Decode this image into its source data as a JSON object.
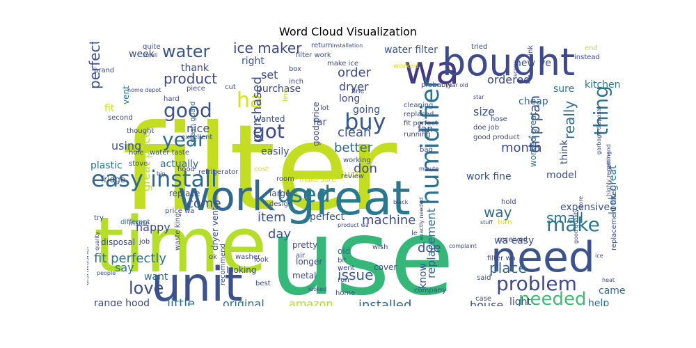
{
  "title": "Word Cloud Visualization",
  "palette": "viridis",
  "words": [
    {
      "text": "filter",
      "color": "#c3de22"
    },
    {
      "text": "use",
      "color": "#35b779"
    },
    {
      "text": "time",
      "color": "#b5de2b"
    },
    {
      "text": "work",
      "color": "#31688e"
    },
    {
      "text": "great",
      "color": "#2a788e"
    },
    {
      "text": "wa",
      "color": "#443983"
    },
    {
      "text": "bought",
      "color": "#3e4a89"
    },
    {
      "text": "unit",
      "color": "#3b528b"
    },
    {
      "text": "need",
      "color": "#3b528b"
    },
    {
      "text": "humidifier",
      "color": "#2c728e"
    },
    {
      "text": "easy install",
      "color": "#31688e"
    },
    {
      "text": "ha",
      "color": "#d8e219"
    },
    {
      "text": "buy",
      "color": "#38588c"
    },
    {
      "text": "got",
      "color": "#3e4a89"
    },
    {
      "text": "used",
      "color": "#2a788e"
    },
    {
      "text": "good",
      "color": "#3b528b"
    },
    {
      "text": "year",
      "color": "#31688e"
    },
    {
      "text": "love",
      "color": "#3e4a89"
    },
    {
      "text": "problem",
      "color": "#3e4a89"
    },
    {
      "text": "make",
      "color": "#2a788e"
    },
    {
      "text": "needed",
      "color": "#3dbc74"
    },
    {
      "text": "thing",
      "color": "#2c728e"
    },
    {
      "text": "water",
      "color": "#3b528b"
    },
    {
      "text": "ice maker",
      "color": "#3e4a89"
    },
    {
      "text": "perfect fit",
      "color": "#3b528b"
    },
    {
      "text": "fit perfectly",
      "color": "#2c728e"
    },
    {
      "text": "great price",
      "color": "#b5de2b"
    },
    {
      "text": "purchased",
      "color": "#3b528b"
    },
    {
      "text": "really",
      "color": "#2c728e"
    },
    {
      "text": "drip pan",
      "color": "#3b528b"
    },
    {
      "text": "replacement",
      "color": "#31688e"
    },
    {
      "text": "product",
      "color": "#3e4a89"
    },
    {
      "text": "range hood",
      "color": "#3e4a89"
    },
    {
      "text": "little",
      "color": "#2c728e"
    },
    {
      "text": "original",
      "color": "#2c728e"
    },
    {
      "text": "amazon",
      "color": "#b5de2b"
    },
    {
      "text": "installed",
      "color": "#31688e"
    },
    {
      "text": "issue",
      "color": "#38588c"
    },
    {
      "text": "item",
      "color": "#3b528b"
    },
    {
      "text": "machine",
      "color": "#3e4a89"
    },
    {
      "text": "day",
      "color": "#3b528b"
    },
    {
      "text": "doe",
      "color": "#3b528b"
    },
    {
      "text": "place",
      "color": "#31688e"
    },
    {
      "text": "small",
      "color": "#2c728e"
    },
    {
      "text": "way",
      "color": "#31688e"
    },
    {
      "text": "work fine",
      "color": "#3b528b"
    },
    {
      "text": "month",
      "color": "#3e4a89"
    },
    {
      "text": "order",
      "color": "#3e4a89"
    },
    {
      "text": "dryer",
      "color": "#3e4a89"
    },
    {
      "text": "clean",
      "color": "#3b528b"
    },
    {
      "text": "better",
      "color": "#31688e"
    },
    {
      "text": "set",
      "color": "#3e4a89"
    },
    {
      "text": "nice",
      "color": "#3e4a89"
    },
    {
      "text": "come",
      "color": "#3b528b"
    },
    {
      "text": "using",
      "color": "#3b528b"
    },
    {
      "text": "happy",
      "color": "#3e4a89"
    },
    {
      "text": "say",
      "color": "#2c728e"
    },
    {
      "text": "want",
      "color": "#31688e"
    },
    {
      "text": "water filter",
      "color": "#3b528b"
    },
    {
      "text": "ordered",
      "color": "#3e4a89"
    },
    {
      "text": "sure",
      "color": "#2a788e"
    },
    {
      "text": "look great",
      "color": "#2c728e"
    },
    {
      "text": "house",
      "color": "#3e4a89"
    },
    {
      "text": "light",
      "color": "#3b528b"
    },
    {
      "text": "help",
      "color": "#31688e"
    },
    {
      "text": "came",
      "color": "#31688e"
    },
    {
      "text": "expensive",
      "color": "#3b528b"
    },
    {
      "text": "kitchen",
      "color": "#2a788e"
    },
    {
      "text": "purchase",
      "color": "#3e4a89"
    },
    {
      "text": "don",
      "color": "#3e4a89"
    },
    {
      "text": "great product",
      "color": "#c3de22"
    },
    {
      "text": "perfect",
      "color": "#3b528b"
    },
    {
      "text": "new",
      "color": "#3b528b"
    },
    {
      "text": "ve",
      "color": "#3e4a89"
    },
    {
      "text": "right",
      "color": "#3b528b"
    },
    {
      "text": "long",
      "color": "#3e4a89"
    },
    {
      "text": "going",
      "color": "#3b528b"
    },
    {
      "text": "far",
      "color": "#3b528b"
    },
    {
      "text": "fan",
      "color": "#3b528b"
    },
    {
      "text": "size",
      "color": "#3b528b"
    },
    {
      "text": "cheap",
      "color": "#31688e"
    },
    {
      "text": "think",
      "color": "#3b528b"
    },
    {
      "text": "model",
      "color": "#3e4a89"
    },
    {
      "text": "thank",
      "color": "#3e4a89"
    },
    {
      "text": "week",
      "color": "#3b528b"
    },
    {
      "text": "vent",
      "color": "#2a788e"
    },
    {
      "text": "fit",
      "color": "#c3de22"
    },
    {
      "text": "wanted",
      "color": "#3b528b"
    },
    {
      "text": "easily",
      "color": "#3b528b"
    },
    {
      "text": "actually",
      "color": "#31688e"
    },
    {
      "text": "plastic",
      "color": "#2a788e"
    },
    {
      "text": "fridge",
      "color": "#3b528b"
    },
    {
      "text": "replace",
      "color": "#3b528b"
    },
    {
      "text": "wa easy",
      "color": "#3b528b"
    },
    {
      "text": "good price",
      "color": "#3e4a89"
    },
    {
      "text": "worked great",
      "color": "#2c728e"
    },
    {
      "text": "know",
      "color": "#3b528b"
    },
    {
      "text": "old",
      "color": "#31688e"
    },
    {
      "text": "disposal",
      "color": "#3e4a89"
    },
    {
      "text": "cover",
      "color": "#3b528b"
    },
    {
      "text": "dishwasher",
      "color": "#3e4a89"
    },
    {
      "text": "recommend",
      "color": "#3e4a89"
    },
    {
      "text": "dryer vent",
      "color": "#3b528b"
    },
    {
      "text": "waste king",
      "color": "#3e4a89"
    },
    {
      "text": "water taste",
      "color": "#3e4a89"
    },
    {
      "text": "splash guard",
      "color": "#2a788e"
    },
    {
      "text": "refrigerator",
      "color": "#3e4a89"
    },
    {
      "text": "different",
      "color": "#2c728e"
    },
    {
      "text": "second",
      "color": "#3e4a89"
    },
    {
      "text": "thought",
      "color": "#3e4a89"
    },
    {
      "text": "hole",
      "color": "#3e4a89"
    },
    {
      "text": "stove",
      "color": "#3e4a89"
    },
    {
      "text": "hood",
      "color": "#3e4a89"
    },
    {
      "text": "hard",
      "color": "#3e4a89"
    },
    {
      "text": "piece",
      "color": "#3e4a89"
    },
    {
      "text": "excellent",
      "color": "#3b528b"
    },
    {
      "text": "home depot",
      "color": "#3e4a89"
    },
    {
      "text": "brand",
      "color": "#3e4a89"
    },
    {
      "text": "quite",
      "color": "#3e4a89"
    },
    {
      "text": "smell",
      "color": "#3e4a89"
    },
    {
      "text": "return",
      "color": "#3e4a89"
    },
    {
      "text": "installation",
      "color": "#3e4a89"
    },
    {
      "text": "filter work",
      "color": "#3e4a89"
    },
    {
      "text": "make ice",
      "color": "#3e4a89"
    },
    {
      "text": "worked",
      "color": "#d8e219"
    },
    {
      "text": "box",
      "color": "#3e4a89"
    },
    {
      "text": "inch",
      "color": "#3e4a89"
    },
    {
      "text": "line",
      "color": "#c3de22"
    },
    {
      "text": "cut",
      "color": "#3e4a89"
    },
    {
      "text": "lot",
      "color": "#3e4a89"
    },
    {
      "text": "fine",
      "color": "#3e4a89"
    },
    {
      "text": "cleaning",
      "color": "#3b528b"
    },
    {
      "text": "replaced",
      "color": "#3b528b"
    },
    {
      "text": "fit perfect",
      "color": "#3e4a89"
    },
    {
      "text": "running",
      "color": "#3b528b"
    },
    {
      "text": "bag",
      "color": "#3e4a89"
    },
    {
      "text": "probably",
      "color": "#3e4a89"
    },
    {
      "text": "tried",
      "color": "#3e4a89"
    },
    {
      "text": "sink",
      "color": "#3e4a89"
    },
    {
      "text": "end",
      "color": "#c3de22"
    },
    {
      "text": "instead",
      "color": "#3e4a89"
    },
    {
      "text": "screw",
      "color": "#3e4a89"
    },
    {
      "text": "year old",
      "color": "#3e4a89"
    },
    {
      "text": "star",
      "color": "#3e4a89"
    },
    {
      "text": "doe job",
      "color": "#3e4a89"
    },
    {
      "text": "hose",
      "color": "#3e4a89"
    },
    {
      "text": "good product",
      "color": "#3e4a89"
    },
    {
      "text": "garbage disposal",
      "color": "#3e4a89"
    },
    {
      "text": "getting",
      "color": "#3e4a89"
    },
    {
      "text": "good quality",
      "color": "#3e4a89"
    },
    {
      "text": "store",
      "color": "#3e4a89"
    },
    {
      "text": "highly recommend",
      "color": "#3e4a89"
    },
    {
      "text": "exactly needed",
      "color": "#3e4a89"
    },
    {
      "text": "turn",
      "color": "#d8e219"
    },
    {
      "text": "hold",
      "color": "#3e4a89"
    },
    {
      "text": "stuff",
      "color": "#3e4a89"
    },
    {
      "text": "received",
      "color": "#3e4a89"
    },
    {
      "text": "complaint",
      "color": "#3e4a89"
    },
    {
      "text": "filter wa",
      "color": "#3e4a89"
    },
    {
      "text": "replacement filter",
      "color": "#3e4a89"
    },
    {
      "text": "heat",
      "color": "#3e4a89"
    },
    {
      "text": "said",
      "color": "#3e4a89"
    },
    {
      "text": "case",
      "color": "#3e4a89"
    },
    {
      "text": "company",
      "color": "#3e4a89"
    },
    {
      "text": "wish",
      "color": "#3e4a89"
    },
    {
      "text": "le",
      "color": "#3e4a89"
    },
    {
      "text": "bit",
      "color": "#3e4a89"
    },
    {
      "text": "went",
      "color": "#3e4a89"
    },
    {
      "text": "pretty",
      "color": "#3e4a89"
    },
    {
      "text": "black",
      "color": "#3e4a89"
    },
    {
      "text": "product wa",
      "color": "#3e4a89"
    },
    {
      "text": "make sure",
      "color": "#d8e219"
    },
    {
      "text": "review",
      "color": "#3e4a89"
    },
    {
      "text": "working",
      "color": "#3e4a89"
    },
    {
      "text": "minute",
      "color": "#3e4a89"
    },
    {
      "text": "room",
      "color": "#3e4a89"
    },
    {
      "text": "cost",
      "color": "#d8e219"
    },
    {
      "text": "large",
      "color": "#3e4a89"
    },
    {
      "text": "design",
      "color": "#3e4a89"
    },
    {
      "text": "air",
      "color": "#3e4a89"
    },
    {
      "text": "longer",
      "color": "#3e4a89"
    },
    {
      "text": "metal",
      "color": "#3e4a89"
    },
    {
      "text": "look",
      "color": "#3e4a89"
    },
    {
      "text": "best",
      "color": "#3e4a89"
    },
    {
      "text": "home",
      "color": "#3e4a89"
    },
    {
      "text": "looked",
      "color": "#3e4a89"
    },
    {
      "text": "run",
      "color": "#3e4a89"
    },
    {
      "text": "looking",
      "color": "#3e4a89"
    },
    {
      "text": "washer",
      "color": "#3e4a89"
    },
    {
      "text": "ok",
      "color": "#3e4a89"
    },
    {
      "text": "price wa",
      "color": "#3e4a89"
    },
    {
      "text": "job",
      "color": "#3e4a89"
    },
    {
      "text": "inside",
      "color": "#3e4a89"
    },
    {
      "text": "try",
      "color": "#3e4a89"
    },
    {
      "text": "quality",
      "color": "#3e4a89"
    },
    {
      "text": "people",
      "color": "#3e4a89"
    },
    {
      "text": "big",
      "color": "#3e4a89"
    },
    {
      "text": "ice",
      "color": "#3e4a89"
    }
  ]
}
